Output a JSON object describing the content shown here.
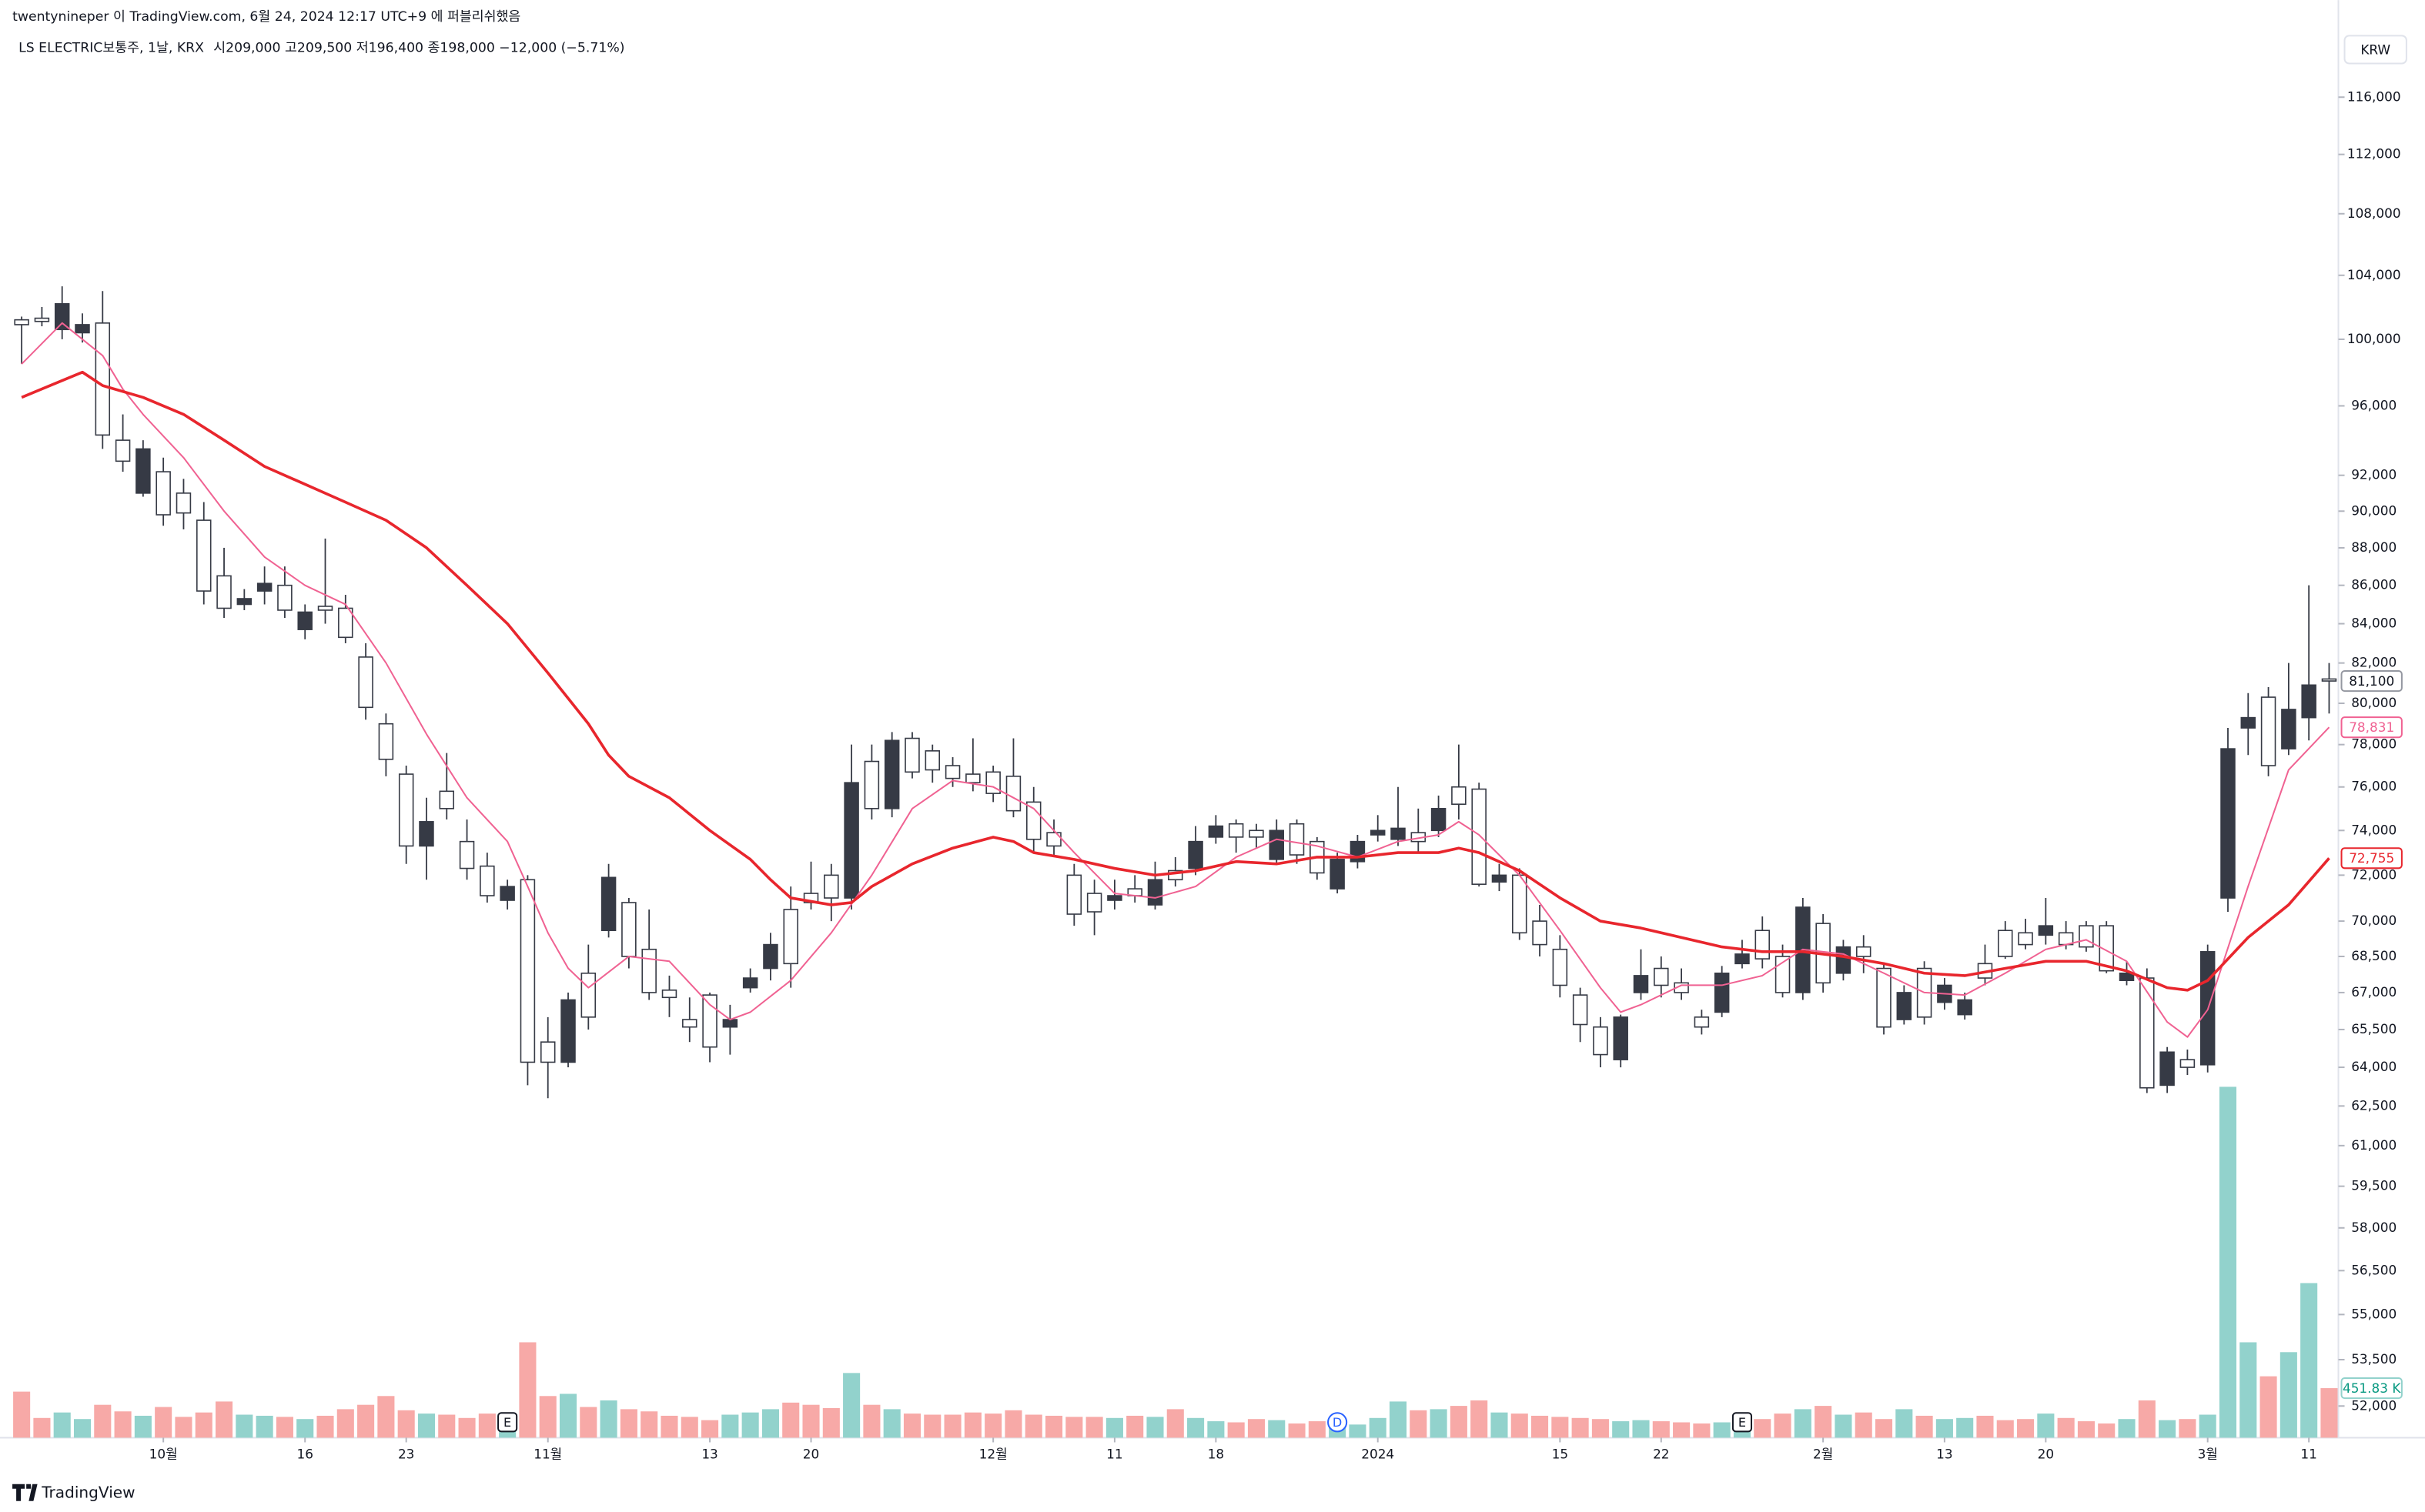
{
  "header": "twentynineper 이 TradingView.com, 6월 24, 2024 12:17 UTC+9 에 퍼블리쉬했음",
  "chart_data": {
    "type": "candlestick",
    "symbol": "LS ELECTRIC보통주, 1날, KRX",
    "ohlc_legend": "시209,000 고209,500 저196,400 종198,000 −12,000 (−5.71%)",
    "currency": "KRW",
    "brand": "TradingView",
    "log": true,
    "grid": false,
    "up_color": "#363a45",
    "down_color": "#ffffff",
    "wick_color": "#363a45",
    "volume_up_color": "#92d2cc",
    "volume_down_color": "#f7a9a7",
    "ylim": [
      51000,
      120800
    ],
    "yticks": [
      {
        "value": 116000,
        "label": "116,000"
      },
      {
        "value": 112000,
        "label": "112,000"
      },
      {
        "value": 108000,
        "label": "108,000"
      },
      {
        "value": 104000,
        "label": "104,000"
      },
      {
        "value": 100000,
        "label": "100,000"
      },
      {
        "value": 96000,
        "label": "96,000"
      },
      {
        "value": 92000,
        "label": "92,000"
      },
      {
        "value": 90000,
        "label": "90,000"
      },
      {
        "value": 88000,
        "label": "88,000"
      },
      {
        "value": 86000,
        "label": "86,000"
      },
      {
        "value": 84000,
        "label": "84,000"
      },
      {
        "value": 82000,
        "label": "82,000"
      },
      {
        "value": 80000,
        "label": "80,000"
      },
      {
        "value": 78000,
        "label": "78,000"
      },
      {
        "value": 76000,
        "label": "76,000"
      },
      {
        "value": 74000,
        "label": "74,000"
      },
      {
        "value": 72000,
        "label": "72,000"
      },
      {
        "value": 70000,
        "label": "70,000"
      },
      {
        "value": 68500,
        "label": "68,500"
      },
      {
        "value": 67000,
        "label": "67,000"
      },
      {
        "value": 65500,
        "label": "65,500"
      },
      {
        "value": 64000,
        "label": "64,000"
      },
      {
        "value": 62500,
        "label": "62,500"
      },
      {
        "value": 61000,
        "label": "61,000"
      },
      {
        "value": 59500,
        "label": "59,500"
      },
      {
        "value": 58000,
        "label": "58,000"
      },
      {
        "value": 56500,
        "label": "56,500"
      },
      {
        "value": 55000,
        "label": "55,000"
      },
      {
        "value": 53500,
        "label": "53,500"
      },
      {
        "value": 52000,
        "label": "52,000"
      }
    ],
    "categories": [
      null,
      null,
      null,
      null,
      null,
      null,
      null,
      "10월",
      null,
      null,
      null,
      null,
      null,
      null,
      "16",
      null,
      null,
      null,
      null,
      "23",
      null,
      null,
      null,
      null,
      null,
      null,
      "11월",
      null,
      null,
      null,
      null,
      null,
      null,
      null,
      "13",
      null,
      null,
      null,
      null,
      "20",
      null,
      null,
      null,
      null,
      null,
      null,
      null,
      null,
      "12월",
      null,
      null,
      null,
      null,
      null,
      "11",
      null,
      null,
      null,
      null,
      "18",
      null,
      null,
      null,
      null,
      null,
      null,
      null,
      "2024",
      null,
      null,
      null,
      null,
      null,
      null,
      null,
      null,
      "15",
      null,
      null,
      null,
      null,
      "22",
      null,
      null,
      null,
      null,
      null,
      null,
      null,
      "2월",
      null,
      null,
      null,
      null,
      null,
      "13",
      null,
      null,
      null,
      null,
      "20",
      null,
      null,
      null,
      null,
      null,
      null,
      null,
      "3월",
      null,
      null,
      null,
      null,
      "11",
      null
    ],
    "open": [
      101200,
      101300,
      100600,
      100400,
      101000,
      94000,
      91000,
      92200,
      91000,
      89500,
      86500,
      85000,
      85700,
      86000,
      83700,
      84900,
      84800,
      82300,
      79000,
      76600,
      73300,
      75800,
      73500,
      72400,
      70900,
      71800,
      65000,
      64200,
      67800,
      69600,
      70800,
      68800,
      67100,
      65900,
      66900,
      65600,
      67200,
      68000,
      70500,
      71200,
      72000,
      71000,
      77200,
      75000,
      78300,
      77700,
      77000,
      76600,
      76700,
      76500,
      75300,
      73900,
      72000,
      71200,
      70900,
      71400,
      70700,
      72200,
      72300,
      73700,
      74300,
      74000,
      72700,
      74300,
      73500,
      71400,
      72600,
      73800,
      73600,
      73900,
      74000,
      76000,
      75900,
      71700,
      72000,
      70000,
      68800,
      66900,
      65600,
      64300,
      67000,
      68000,
      67400,
      66000,
      66200,
      68200,
      69600,
      68500,
      67000,
      69900,
      67800,
      68900,
      68000,
      65900,
      68000,
      66600,
      66100,
      68200,
      69600,
      69500,
      69400,
      69500,
      69800,
      69800,
      67500,
      67600,
      63300,
      64300,
      64100,
      71000,
      78800,
      80300,
      77800,
      79300,
      81200
    ],
    "high": [
      101400,
      102000,
      103300,
      101600,
      103000,
      95500,
      94000,
      93000,
      91800,
      90500,
      88000,
      85800,
      87000,
      87000,
      85000,
      88500,
      85500,
      83000,
      79500,
      77000,
      75500,
      77600,
      74500,
      73000,
      71800,
      72000,
      66000,
      67000,
      69000,
      72500,
      71000,
      70500,
      67700,
      66800,
      67000,
      66500,
      68000,
      69500,
      71500,
      72600,
      72500,
      78000,
      78000,
      78600,
      78600,
      78000,
      77400,
      78300,
      77000,
      78300,
      76000,
      74500,
      72500,
      71800,
      71800,
      72000,
      72600,
      72800,
      74200,
      74700,
      74500,
      74300,
      74500,
      74500,
      73700,
      73000,
      73800,
      74700,
      76000,
      75000,
      75600,
      78000,
      76200,
      72500,
      72300,
      70700,
      69400,
      67200,
      66000,
      66100,
      68800,
      68500,
      68000,
      66300,
      68100,
      69200,
      70200,
      69000,
      71000,
      70300,
      69200,
      69400,
      68200,
      67300,
      68300,
      67600,
      67000,
      69000,
      70000,
      70100,
      71000,
      70000,
      70000,
      70000,
      68300,
      68000,
      64800,
      64700,
      69000,
      78800,
      80500,
      80800,
      82000,
      86000,
      82000
    ],
    "low": [
      98500,
      100800,
      100000,
      99800,
      93500,
      92200,
      90800,
      89200,
      89000,
      85000,
      84300,
      84700,
      85000,
      84300,
      83200,
      84000,
      83000,
      79200,
      76500,
      72500,
      71800,
      74500,
      71800,
      70800,
      70500,
      63300,
      62800,
      64000,
      65500,
      69300,
      68000,
      66700,
      66000,
      65000,
      64200,
      64500,
      67000,
      67500,
      67200,
      70500,
      70000,
      70500,
      74500,
      74600,
      76400,
      76200,
      76000,
      75800,
      75300,
      74600,
      73000,
      72800,
      69800,
      69400,
      70500,
      70800,
      70500,
      71500,
      72000,
      73400,
      73000,
      73200,
      72500,
      72500,
      71800,
      71200,
      72300,
      73500,
      73300,
      73000,
      73700,
      74500,
      71500,
      71300,
      69200,
      68500,
      66800,
      65000,
      64000,
      64000,
      66700,
      66800,
      66700,
      65300,
      66000,
      68000,
      68000,
      66800,
      66700,
      67000,
      67500,
      67800,
      65300,
      65700,
      65700,
      66300,
      65900,
      67300,
      68400,
      68800,
      69000,
      68800,
      68700,
      67800,
      67300,
      63000,
      63000,
      63700,
      63800,
      70400,
      77500,
      76500,
      77500,
      78200,
      79500
    ],
    "close": [
      100900,
      101100,
      102200,
      100900,
      94300,
      92800,
      93500,
      89800,
      89900,
      85700,
      84800,
      85300,
      86100,
      84700,
      84600,
      84700,
      83300,
      79800,
      77300,
      73300,
      74400,
      75000,
      72300,
      71100,
      71500,
      64200,
      64200,
      66700,
      66000,
      71900,
      68500,
      67000,
      66800,
      65600,
      64800,
      65900,
      67600,
      69000,
      68200,
      70800,
      71000,
      76200,
      75000,
      78200,
      76700,
      76800,
      76400,
      76200,
      75700,
      74900,
      73600,
      73300,
      70300,
      70400,
      71100,
      71100,
      71800,
      71800,
      73500,
      74200,
      73700,
      73700,
      74000,
      72900,
      72100,
      72700,
      73500,
      74000,
      74100,
      73500,
      75000,
      75200,
      71600,
      72000,
      69500,
      69000,
      67300,
      65700,
      64500,
      66000,
      67700,
      67300,
      67000,
      65600,
      67800,
      68600,
      68400,
      67000,
      70600,
      67400,
      68900,
      68500,
      65600,
      67000,
      66000,
      67300,
      66700,
      67600,
      68500,
      69000,
      69800,
      69000,
      68900,
      67900,
      67800,
      63200,
      64600,
      64000,
      68700,
      77800,
      79300,
      77000,
      79700,
      80900,
      81100
    ],
    "last_label": "81,100",
    "volume": {
      "values": [
        420,
        180,
        230,
        170,
        300,
        240,
        200,
        280,
        190,
        230,
        330,
        210,
        200,
        190,
        170,
        200,
        260,
        300,
        380,
        250,
        220,
        210,
        180,
        220,
        200,
        870,
        380,
        400,
        280,
        340,
        260,
        240,
        200,
        190,
        160,
        210,
        230,
        260,
        320,
        300,
        270,
        590,
        300,
        260,
        220,
        210,
        210,
        230,
        220,
        250,
        210,
        200,
        190,
        190,
        180,
        200,
        190,
        260,
        180,
        150,
        140,
        170,
        160,
        130,
        150,
        110,
        120,
        180,
        330,
        250,
        260,
        290,
        340,
        230,
        220,
        200,
        190,
        180,
        170,
        150,
        160,
        150,
        140,
        130,
        140,
        160,
        170,
        220,
        260,
        290,
        210,
        230,
        170,
        260,
        200,
        170,
        180,
        200,
        160,
        170,
        220,
        180,
        150,
        130,
        170,
        340,
        160,
        170,
        210,
        3200,
        870,
        560,
        780,
        1410,
        451.83
      ],
      "last_label": "451.83 K"
    },
    "lines": [
      {
        "color": "#f06292",
        "width": 1,
        "x": [
          0,
          2,
          4,
          5,
          6,
          8,
          10,
          12,
          14,
          16,
          18,
          20,
          22,
          24,
          25,
          26,
          27,
          28,
          30,
          32,
          34,
          35,
          36,
          38,
          40,
          42,
          44,
          46,
          48,
          50,
          52,
          54,
          56,
          58,
          60,
          62,
          64,
          66,
          68,
          70,
          71,
          72,
          74,
          76,
          78,
          79,
          80,
          82,
          84,
          86,
          88,
          90,
          92,
          94,
          96,
          98,
          100,
          102,
          104,
          106,
          107,
          108,
          110,
          112,
          114
        ],
        "values": [
          98500,
          101000,
          99000,
          97000,
          95500,
          93000,
          90000,
          87500,
          86000,
          85000,
          82000,
          78500,
          75500,
          73500,
          71500,
          69500,
          68000,
          67200,
          68500,
          68300,
          66500,
          65900,
          66200,
          67500,
          69500,
          72000,
          75000,
          76300,
          76000,
          75000,
          73000,
          71200,
          71000,
          71500,
          72800,
          73600,
          73300,
          72800,
          73500,
          73800,
          74400,
          73800,
          72000,
          69600,
          67200,
          66200,
          66500,
          67300,
          67300,
          67700,
          68800,
          68600,
          67800,
          67000,
          66900,
          67800,
          68800,
          69200,
          68300,
          65800,
          65200,
          66300,
          71500,
          76800,
          78831
        ],
        "last_label": "78,831"
      },
      {
        "color": "#e8262d",
        "width": 1.8,
        "x": [
          0,
          2,
          3,
          4,
          6,
          8,
          10,
          12,
          14,
          16,
          18,
          20,
          22,
          24,
          26,
          28,
          29,
          30,
          32,
          34,
          36,
          37,
          38,
          40,
          41,
          42,
          44,
          46,
          48,
          49,
          50,
          52,
          54,
          56,
          58,
          60,
          62,
          64,
          66,
          68,
          70,
          71,
          72,
          74,
          76,
          78,
          80,
          82,
          84,
          86,
          88,
          90,
          92,
          94,
          96,
          98,
          100,
          102,
          104,
          106,
          107,
          108,
          110,
          112,
          114
        ],
        "values": [
          96500,
          97500,
          98000,
          97200,
          96500,
          95500,
          94000,
          92500,
          91500,
          90500,
          89500,
          88000,
          86000,
          84000,
          81500,
          79000,
          77500,
          76500,
          75500,
          74000,
          72700,
          71800,
          71000,
          70700,
          70800,
          71500,
          72500,
          73200,
          73700,
          73500,
          73000,
          72700,
          72300,
          72000,
          72200,
          72600,
          72500,
          72800,
          72800,
          73000,
          73000,
          73200,
          73000,
          72200,
          71000,
          70000,
          69700,
          69300,
          68900,
          68700,
          68700,
          68500,
          68200,
          67800,
          67700,
          68000,
          68300,
          68300,
          67900,
          67200,
          67100,
          67500,
          69300,
          70700,
          72755
        ],
        "last_label": "72,755"
      }
    ],
    "events": [
      {
        "label": "E",
        "index": 24
      },
      {
        "label": "D",
        "index": 65
      },
      {
        "label": "E",
        "index": 85
      }
    ]
  }
}
